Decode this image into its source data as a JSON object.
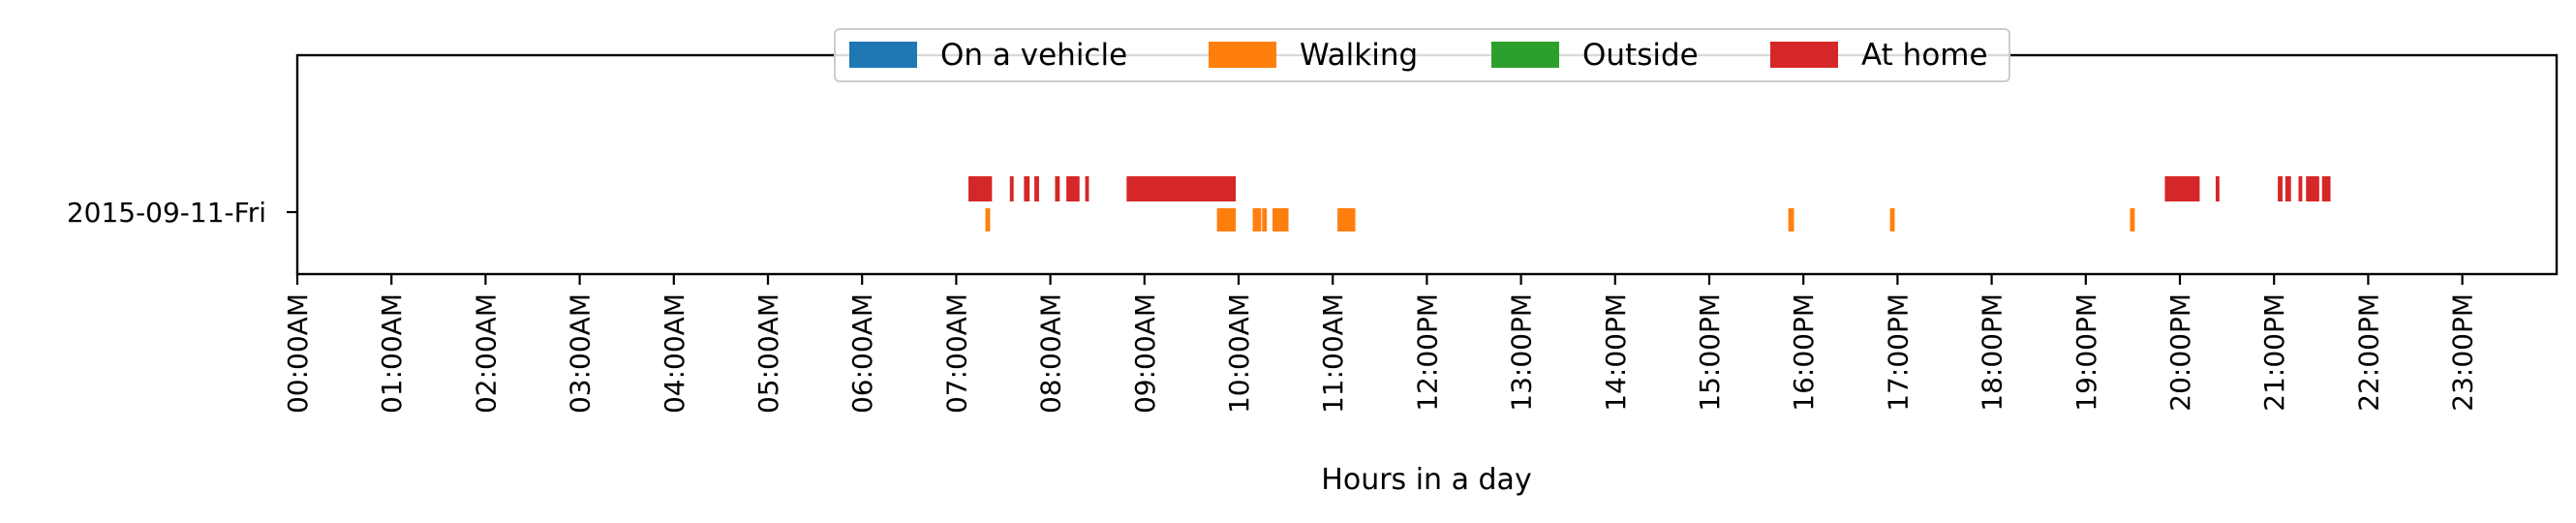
{
  "chart_data": {
    "type": "timeline",
    "title": "",
    "xlabel": "Hours in a day",
    "ylabel": "",
    "xlim": [
      0,
      24
    ],
    "grid": false,
    "legend_position": "top-center",
    "y_categories": [
      "2015-09-11-Fri"
    ],
    "x_tick_labels": [
      "00:00AM",
      "01:00AM",
      "02:00AM",
      "03:00AM",
      "04:00AM",
      "05:00AM",
      "06:00AM",
      "07:00AM",
      "08:00AM",
      "09:00AM",
      "10:00AM",
      "11:00AM",
      "12:00PM",
      "13:00PM",
      "14:00PM",
      "15:00PM",
      "16:00PM",
      "17:00PM",
      "18:00PM",
      "19:00PM",
      "20:00PM",
      "21:00PM",
      "22:00PM",
      "23:00PM"
    ],
    "legend": [
      "On a vehicle",
      "Walking",
      "Outside",
      "At home"
    ],
    "colors": {
      "On a vehicle": "#1f77b4",
      "Walking": "#ff7f0e",
      "Outside": "#2ca02c",
      "At home": "#d62728"
    },
    "series": [
      {
        "name": "On a vehicle",
        "intervals": []
      },
      {
        "name": "Walking",
        "intervals": [
          [
            7.31,
            7.36
          ],
          [
            9.77,
            9.97
          ],
          [
            10.15,
            10.24
          ],
          [
            10.25,
            10.3
          ],
          [
            10.36,
            10.53
          ],
          [
            11.05,
            11.24
          ],
          [
            15.84,
            15.9
          ],
          [
            16.92,
            16.97
          ],
          [
            19.47,
            19.52
          ]
        ]
      },
      {
        "name": "Outside",
        "intervals": []
      },
      {
        "name": "At home",
        "intervals": [
          [
            7.13,
            7.38
          ],
          [
            7.57,
            7.61
          ],
          [
            7.72,
            7.78
          ],
          [
            7.83,
            7.88
          ],
          [
            8.05,
            8.1
          ],
          [
            8.17,
            8.31
          ],
          [
            8.37,
            8.41
          ],
          [
            8.81,
            9.97
          ],
          [
            19.84,
            20.21
          ],
          [
            20.38,
            20.42
          ],
          [
            21.04,
            21.09
          ],
          [
            21.12,
            21.18
          ],
          [
            21.26,
            21.3
          ],
          [
            21.34,
            21.48
          ],
          [
            21.51,
            21.6
          ]
        ]
      }
    ]
  }
}
